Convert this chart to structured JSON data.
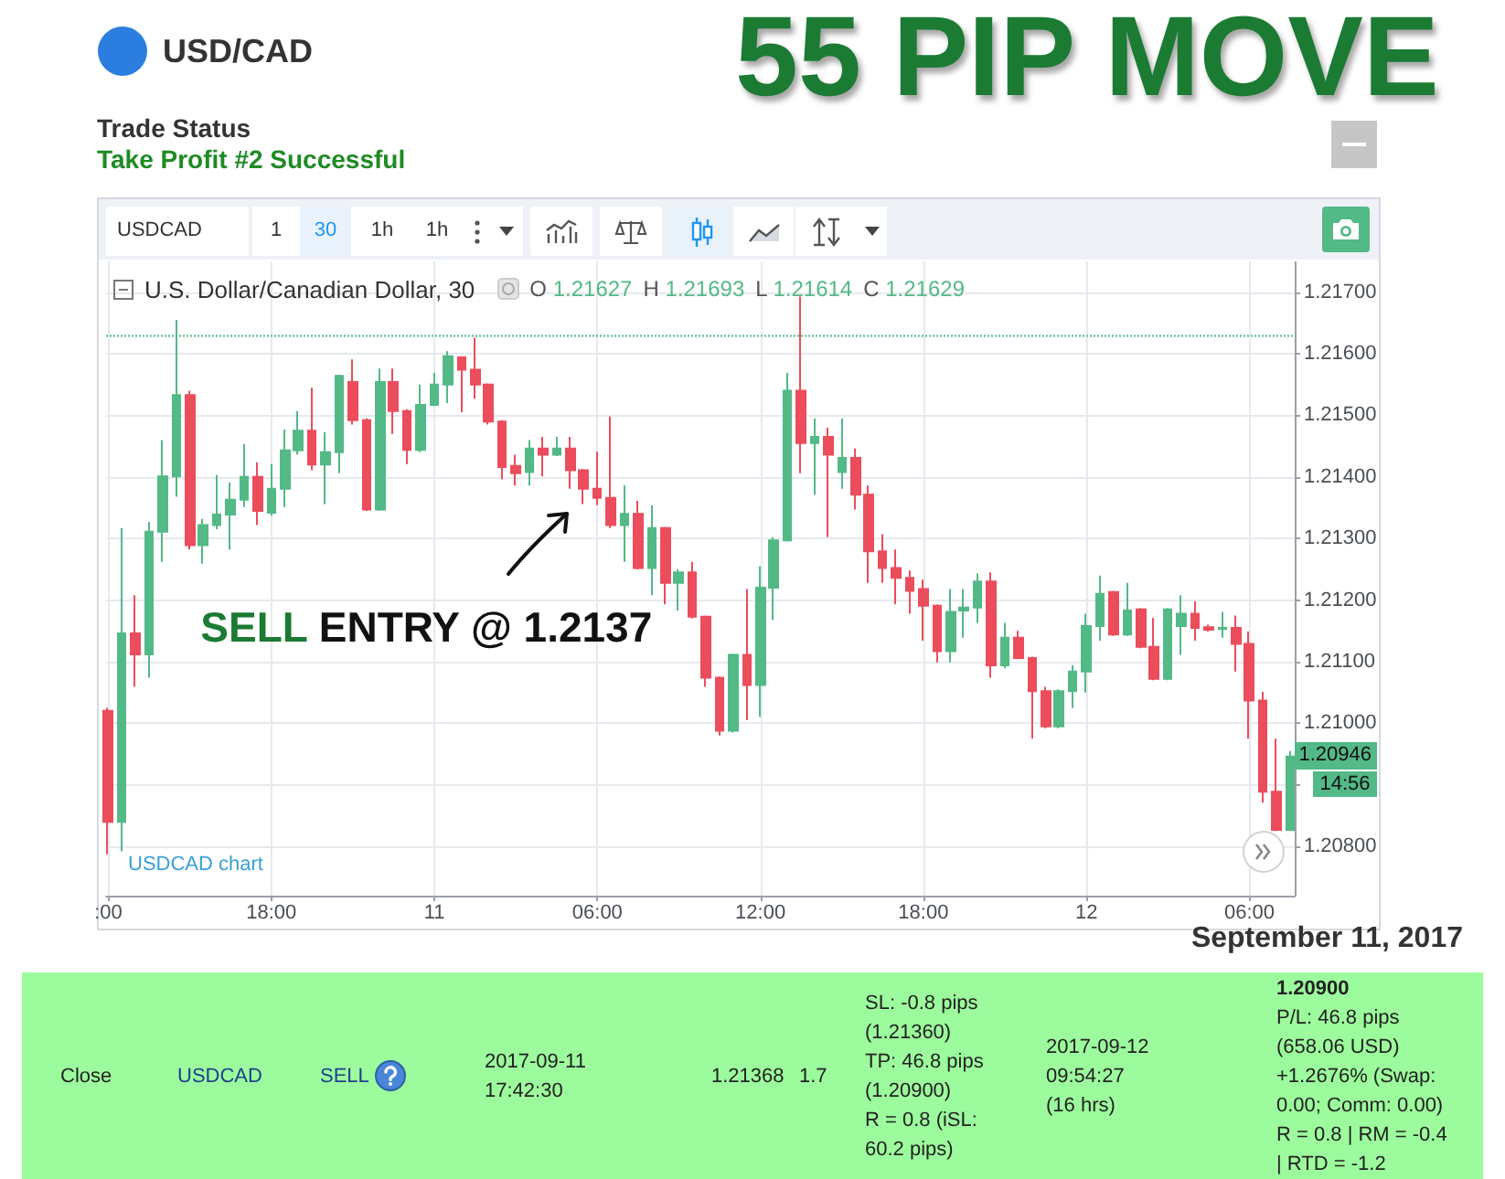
{
  "chart_data": {
    "type": "candlestick",
    "title": "55 PIP MOVE",
    "subtitle": "USD/CAD",
    "x": [
      "2017-09-10T12:00",
      "2017-09-10T12:30",
      "2017-09-10T13:00",
      "2017-09-10T13:30",
      "2017-09-10T14:00",
      "2017-09-10T14:30",
      "2017-09-10T15:00",
      "2017-09-10T15:30",
      "2017-09-10T16:00",
      "2017-09-10T16:30",
      "2017-09-10T17:00",
      "2017-09-10T17:30",
      "2017-09-10T18:00",
      "2017-09-10T18:30",
      "2017-09-10T19:00",
      "2017-09-10T19:30",
      "2017-09-10T20:00",
      "2017-09-10T20:30",
      "2017-09-10T21:00",
      "2017-09-10T21:30",
      "2017-09-10T22:00",
      "2017-09-10T22:30",
      "2017-09-10T23:00",
      "2017-09-10T23:30",
      "2017-09-11T00:00",
      "2017-09-11T00:30",
      "2017-09-11T01:00",
      "2017-09-11T01:30",
      "2017-09-11T02:00",
      "2017-09-11T02:30",
      "2017-09-11T03:00",
      "2017-09-11T03:30",
      "2017-09-11T04:00",
      "2017-09-11T04:30",
      "2017-09-11T05:00",
      "2017-09-11T05:30",
      "2017-09-11T06:00",
      "2017-09-11T06:30",
      "2017-09-11T07:00",
      "2017-09-11T07:30",
      "2017-09-11T08:00",
      "2017-09-11T08:30",
      "2017-09-11T09:00",
      "2017-09-11T09:30",
      "2017-09-11T10:00",
      "2017-09-11T10:30",
      "2017-09-11T11:00",
      "2017-09-11T11:30",
      "2017-09-11T12:00",
      "2017-09-11T12:30",
      "2017-09-11T13:00",
      "2017-09-11T13:30",
      "2017-09-11T14:00",
      "2017-09-11T14:30",
      "2017-09-11T15:00",
      "2017-09-11T15:30",
      "2017-09-11T16:00",
      "2017-09-11T16:30",
      "2017-09-11T17:00",
      "2017-09-11T17:30",
      "2017-09-11T18:00",
      "2017-09-11T18:30",
      "2017-09-11T19:00",
      "2017-09-11T19:30",
      "2017-09-11T20:00",
      "2017-09-11T20:30",
      "2017-09-11T21:00",
      "2017-09-11T21:30",
      "2017-09-11T22:00",
      "2017-09-11T22:30",
      "2017-09-11T23:00",
      "2017-09-11T23:30",
      "2017-09-12T00:00",
      "2017-09-12T00:30",
      "2017-09-12T01:00",
      "2017-09-12T01:30",
      "2017-09-12T02:00",
      "2017-09-12T02:30",
      "2017-09-12T03:00",
      "2017-09-12T03:30",
      "2017-09-12T04:00",
      "2017-09-12T04:30",
      "2017-09-12T05:00",
      "2017-09-12T05:30",
      "2017-09-12T06:00",
      "2017-09-12T06:30",
      "2017-09-12T07:00",
      "2017-09-12T07:30"
    ],
    "ohlc": [
      [
        1.2102,
        1.21025,
        1.20787,
        1.2084
      ],
      [
        1.2084,
        1.21317,
        1.20792,
        1.21146
      ],
      [
        1.21146,
        1.21208,
        1.21059,
        1.21112
      ],
      [
        1.21112,
        1.21327,
        1.21074,
        1.21311
      ],
      [
        1.21311,
        1.2146,
        1.21262,
        1.21401
      ],
      [
        1.21401,
        1.21655,
        1.21368,
        1.21533
      ],
      [
        1.21533,
        1.2154,
        1.21282,
        1.21289
      ],
      [
        1.21289,
        1.21332,
        1.21259,
        1.21322
      ],
      [
        1.21322,
        1.21403,
        1.21315,
        1.21339
      ],
      [
        1.21339,
        1.21391,
        1.21282,
        1.21363
      ],
      [
        1.21363,
        1.21453,
        1.21351,
        1.214
      ],
      [
        1.214,
        1.21424,
        1.21322,
        1.21345
      ],
      [
        1.21342,
        1.21421,
        1.21337,
        1.21381
      ],
      [
        1.21381,
        1.21477,
        1.21351,
        1.21443
      ],
      [
        1.21443,
        1.21507,
        1.21436,
        1.21475
      ],
      [
        1.21475,
        1.21545,
        1.21411,
        1.2142
      ],
      [
        1.2142,
        1.21473,
        1.21356,
        1.2144
      ],
      [
        1.2144,
        1.21566,
        1.21406,
        1.21564
      ],
      [
        1.21554,
        1.21591,
        1.21485,
        1.21492
      ],
      [
        1.21492,
        1.21495,
        1.21345,
        1.21347
      ],
      [
        1.21347,
        1.21576,
        1.21345,
        1.21554
      ],
      [
        1.21554,
        1.21576,
        1.2147,
        1.21507
      ],
      [
        1.21507,
        1.2151,
        1.21421,
        1.21444
      ],
      [
        1.21444,
        1.2155,
        1.2144,
        1.21517
      ],
      [
        1.21517,
        1.21569,
        1.21515,
        1.2155
      ],
      [
        1.2155,
        1.21604,
        1.2152,
        1.21596
      ],
      [
        1.21594,
        1.21596,
        1.21505,
        1.21574
      ],
      [
        1.21574,
        1.21626,
        1.21527,
        1.2155
      ],
      [
        1.2155,
        1.21552,
        1.21485,
        1.2149
      ],
      [
        1.2149,
        1.21492,
        1.21396,
        1.21416
      ],
      [
        1.21418,
        1.21436,
        1.21386,
        1.21406
      ],
      [
        1.21408,
        1.2146,
        1.21386,
        1.21446
      ],
      [
        1.21446,
        1.21465,
        1.21401,
        1.21436
      ],
      [
        1.21436,
        1.21465,
        1.21434,
        1.21446
      ],
      [
        1.21446,
        1.21465,
        1.21381,
        1.21411
      ],
      [
        1.21411,
        1.21413,
        1.21356,
        1.21381
      ],
      [
        1.21381,
        1.21441,
        1.21354,
        1.21366
      ],
      [
        1.21366,
        1.21498,
        1.21317,
        1.21322
      ],
      [
        1.21322,
        1.21386,
        1.21262,
        1.2134
      ],
      [
        1.2134,
        1.21361,
        1.2125,
        1.21252
      ],
      [
        1.21252,
        1.21354,
        1.21208,
        1.21317
      ],
      [
        1.21317,
        1.21319,
        1.21193,
        1.21228
      ],
      [
        1.21228,
        1.2125,
        1.21183,
        1.21245
      ],
      [
        1.21245,
        1.21262,
        1.2117,
        1.21173
      ],
      [
        1.21173,
        1.21175,
        1.21059,
        1.21074
      ],
      [
        1.21074,
        1.21076,
        1.2098,
        1.20988
      ],
      [
        1.20988,
        1.21113,
        1.20985,
        1.21111
      ],
      [
        1.21111,
        1.21218,
        1.21005,
        1.21062
      ],
      [
        1.21062,
        1.21255,
        1.2101,
        1.2122
      ],
      [
        1.2122,
        1.21302,
        1.21168,
        1.21297
      ],
      [
        1.21297,
        1.21569,
        1.21295,
        1.2154
      ],
      [
        1.2154,
        1.21693,
        1.21406,
        1.21455
      ],
      [
        1.21455,
        1.21495,
        1.21371,
        1.21465
      ],
      [
        1.21465,
        1.2148,
        1.21302,
        1.21436
      ],
      [
        1.21408,
        1.21495,
        1.21381,
        1.21431
      ],
      [
        1.21431,
        1.21446,
        1.21347,
        1.21371
      ],
      [
        1.21371,
        1.21386,
        1.21228,
        1.21279
      ],
      [
        1.21279,
        1.21307,
        1.21228,
        1.21252
      ],
      [
        1.21252,
        1.21282,
        1.21193,
        1.21236
      ],
      [
        1.21236,
        1.21248,
        1.21178,
        1.21215
      ],
      [
        1.21218,
        1.21233,
        1.21134,
        1.21191
      ],
      [
        1.21191,
        1.21193,
        1.21099,
        1.21117
      ],
      [
        1.21117,
        1.21218,
        1.21099,
        1.21181
      ],
      [
        1.21183,
        1.21218,
        1.21139,
        1.21188
      ],
      [
        1.21188,
        1.21243,
        1.21163,
        1.2123
      ],
      [
        1.2123,
        1.21245,
        1.21074,
        1.21094
      ],
      [
        1.21094,
        1.21163,
        1.21089,
        1.21139
      ],
      [
        1.21139,
        1.2115,
        1.21104,
        1.21106
      ],
      [
        1.21106,
        1.21108,
        1.20975,
        1.21052
      ],
      [
        1.21052,
        1.21059,
        1.20992,
        1.20995
      ],
      [
        1.20995,
        1.21055,
        1.20992,
        1.21052
      ],
      [
        1.21052,
        1.21094,
        1.21025,
        1.21084
      ],
      [
        1.21084,
        1.21178,
        1.2105,
        1.21158
      ],
      [
        1.21158,
        1.2124,
        1.21134,
        1.2121
      ],
      [
        1.21213,
        1.21215,
        1.21142,
        1.21144
      ],
      [
        1.21144,
        1.21228,
        1.21142,
        1.21183
      ],
      [
        1.21185,
        1.21187,
        1.21122,
        1.21124
      ],
      [
        1.21124,
        1.21171,
        1.2107,
        1.21072
      ],
      [
        1.21072,
        1.21187,
        1.2107,
        1.21185
      ],
      [
        1.21158,
        1.21208,
        1.21111,
        1.21178
      ],
      [
        1.21178,
        1.21198,
        1.21134,
        1.21155
      ],
      [
        1.21156,
        1.2116,
        1.21149,
        1.21152
      ],
      [
        1.21153,
        1.21181,
        1.21139,
        1.21155
      ],
      [
        1.21155,
        1.21175,
        1.21084,
        1.21129
      ],
      [
        1.21129,
        1.21149,
        1.20975,
        1.21037
      ],
      [
        1.21037,
        1.21051,
        1.20871,
        1.20889
      ],
      [
        1.20889,
        1.20975,
        1.20825,
        1.20827
      ],
      [
        1.20827,
        1.20955,
        1.20825,
        1.20946
      ]
    ],
    "colors": [
      "#eb4d5c",
      "#53b987",
      "#eb4d5c",
      "#53b987",
      "#53b987",
      "#53b987",
      "#eb4d5c",
      "#53b987",
      "#53b987",
      "#53b987",
      "#53b987",
      "#eb4d5c",
      "#53b987",
      "#53b987",
      "#53b987",
      "#eb4d5c",
      "#53b987",
      "#53b987",
      "#eb4d5c",
      "#eb4d5c",
      "#53b987",
      "#eb4d5c",
      "#eb4d5c",
      "#53b987",
      "#53b987",
      "#53b987",
      "#eb4d5c",
      "#eb4d5c",
      "#eb4d5c",
      "#eb4d5c",
      "#eb4d5c",
      "#53b987",
      "#eb4d5c",
      "#53b987",
      "#eb4d5c",
      "#eb4d5c",
      "#eb4d5c",
      "#eb4d5c",
      "#53b987",
      "#eb4d5c",
      "#53b987",
      "#eb4d5c",
      "#53b987",
      "#eb4d5c",
      "#eb4d5c",
      "#eb4d5c",
      "#53b987",
      "#eb4d5c",
      "#53b987",
      "#53b987",
      "#53b987",
      "#eb4d5c",
      "#53b987",
      "#eb4d5c",
      "#53b987",
      "#eb4d5c",
      "#eb4d5c",
      "#eb4d5c",
      "#eb4d5c",
      "#eb4d5c",
      "#eb4d5c",
      "#eb4d5c",
      "#53b987",
      "#53b987",
      "#53b987",
      "#eb4d5c",
      "#53b987",
      "#eb4d5c",
      "#eb4d5c",
      "#eb4d5c",
      "#53b987",
      "#53b987",
      "#53b987",
      "#53b987",
      "#eb4d5c",
      "#53b987",
      "#eb4d5c",
      "#eb4d5c",
      "#53b987",
      "#53b987",
      "#eb4d5c",
      "#eb4d5c",
      "#53b987",
      "#eb4d5c",
      "#eb4d5c",
      "#eb4d5c",
      "#eb4d5c",
      "#53b987"
    ],
    "xlim": [
      "2017-09-10T11:55",
      "2017-09-12T07:40"
    ],
    "xticks": [
      {
        "value": "2017-09-10T12:00",
        "label": ":00"
      },
      {
        "value": "2017-09-10T18:00",
        "label": "18:00"
      },
      {
        "value": "2017-09-11T00:00",
        "label": "11"
      },
      {
        "value": "2017-09-11T06:00",
        "label": "06:00"
      },
      {
        "value": "2017-09-11T12:00",
        "label": "12:00"
      },
      {
        "value": "2017-09-11T18:00",
        "label": "18:00"
      },
      {
        "value": "2017-09-12T00:00",
        "label": "12"
      },
      {
        "value": "2017-09-12T06:00",
        "label": "06:00"
      }
    ],
    "ylim": [
      1.2072,
      1.2175
    ],
    "yticks": [
      {
        "value": 1.208,
        "label": "1.20800"
      },
      {
        "value": 1.209,
        "label": null
      },
      {
        "value": 1.21,
        "label": "1.21000"
      },
      {
        "value": 1.211,
        "label": "1.21100"
      },
      {
        "value": 1.212,
        "label": "1.21200"
      },
      {
        "value": 1.213,
        "label": "1.21300"
      },
      {
        "value": 1.214,
        "label": "1.21400"
      },
      {
        "value": 1.215,
        "label": "1.21500"
      },
      {
        "value": 1.216,
        "label": "1.21600"
      },
      {
        "value": 1.217,
        "label": "1.21700"
      }
    ],
    "grid": true,
    "ref_lines": [
      {
        "axis": "y",
        "value": 1.21629,
        "color": "#53b987",
        "line_style": "dotted"
      }
    ],
    "annotations": [
      "Trade Status",
      "Take Profit #2 Successful",
      "U.S. Dollar/Canadian Dollar, 30",
      "O 1.21627",
      "H 1.21693",
      "L 1.21614",
      "C 1.21629",
      {
        "text": "SELL ENTRY @ 1.2137",
        "x": "2017-09-11T06:00",
        "y": 1.2137
      },
      "USDCAD chart",
      "1.20946",
      "14:56",
      "September 11, 2017",
      "USDCAD",
      "1",
      "30",
      "1h",
      "1h",
      "Close",
      "USDCAD",
      "SELL",
      "2017-09-11\n17:42:30",
      "1.21368",
      "1.7",
      "SL: -0.8 pips\n(1.21360)\nTP: 46.8 pips\n(1.20900)\nR = 0.8 (iSL:\n60.2 pips)",
      "2017-09-12\n09:54:27\n(16 hrs)",
      "1.20900\nP/L: 46.8 pips\n(658.06 USD)\n+1.2676% (Swap:\n0.00; Comm: 0.00)\nR = 0.8 | RM = -0.4\n| RTD = -1.2"
    ]
  }
}
